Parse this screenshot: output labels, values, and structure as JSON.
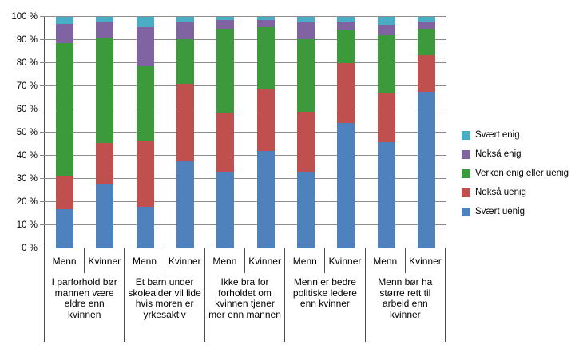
{
  "chart_data": {
    "type": "bar",
    "variant": "stacked-100-percent",
    "title": "",
    "xlabel": "",
    "ylabel": "",
    "ylim": [
      0,
      100
    ],
    "grid": true,
    "legend_position": "right",
    "y_tick_labels": [
      "0 %",
      "10 %",
      "20 %",
      "30 %",
      "40 %",
      "50 %",
      "60 %",
      "70 %",
      "80 %",
      "90 %",
      "100 %"
    ],
    "groups": [
      {
        "label": "I parforhold bør mannen være eldre enn kvinnen",
        "subcategories": [
          "Menn",
          "Kvinner"
        ]
      },
      {
        "label": "Et barn under skolealder vil lide hvis moren er yrkesaktiv",
        "subcategories": [
          "Menn",
          "Kvinner"
        ]
      },
      {
        "label": "Ikke bra for forholdet om kvinnen tjener mer enn mannen",
        "subcategories": [
          "Menn",
          "Kvinner"
        ]
      },
      {
        "label": "Menn er bedre politiske ledere enn kvinner",
        "subcategories": [
          "Menn",
          "Kvinner"
        ]
      },
      {
        "label": "Menn bør ha større rett til arbeid enn kvinner",
        "subcategories": [
          "Menn",
          "Kvinner"
        ]
      }
    ],
    "bar_order_note": "values arrays run left-to-right: Menn,Kvinner per group above",
    "series": [
      {
        "name": "Svært enig",
        "color": "#4BACC6",
        "values": [
          3,
          2.5,
          4.5,
          2.5,
          1.5,
          1.5,
          2.5,
          2,
          3.5,
          2.2
        ]
      },
      {
        "name": "Nokså enig",
        "color": "#8064A2",
        "values": [
          8.5,
          6.5,
          17,
          7,
          3.5,
          3,
          7,
          3.5,
          4.5,
          2.8
        ]
      },
      {
        "name": "Verken enig eller uenig",
        "color": "#3C9A3C",
        "values": [
          57.5,
          45.5,
          32,
          19.5,
          36.5,
          27,
          31.5,
          14.5,
          25,
          11.5
        ]
      },
      {
        "name": "Nokså uenig",
        "color": "#C0504D",
        "values": [
          14,
          18,
          28.5,
          33.5,
          25.5,
          26.5,
          26,
          26,
          21,
          16
        ]
      },
      {
        "name": "Svært uenig",
        "color": "#4F81BD",
        "values": [
          17,
          27.5,
          18,
          37.5,
          33,
          42,
          33,
          54,
          46,
          67.5
        ]
      }
    ],
    "stack_order": "last series at bottom, first series on top",
    "colors": {
      "gridline": "#8c8c8c",
      "axis": "#4d4d4d",
      "background": "#ffffff",
      "text": "#000000"
    }
  }
}
